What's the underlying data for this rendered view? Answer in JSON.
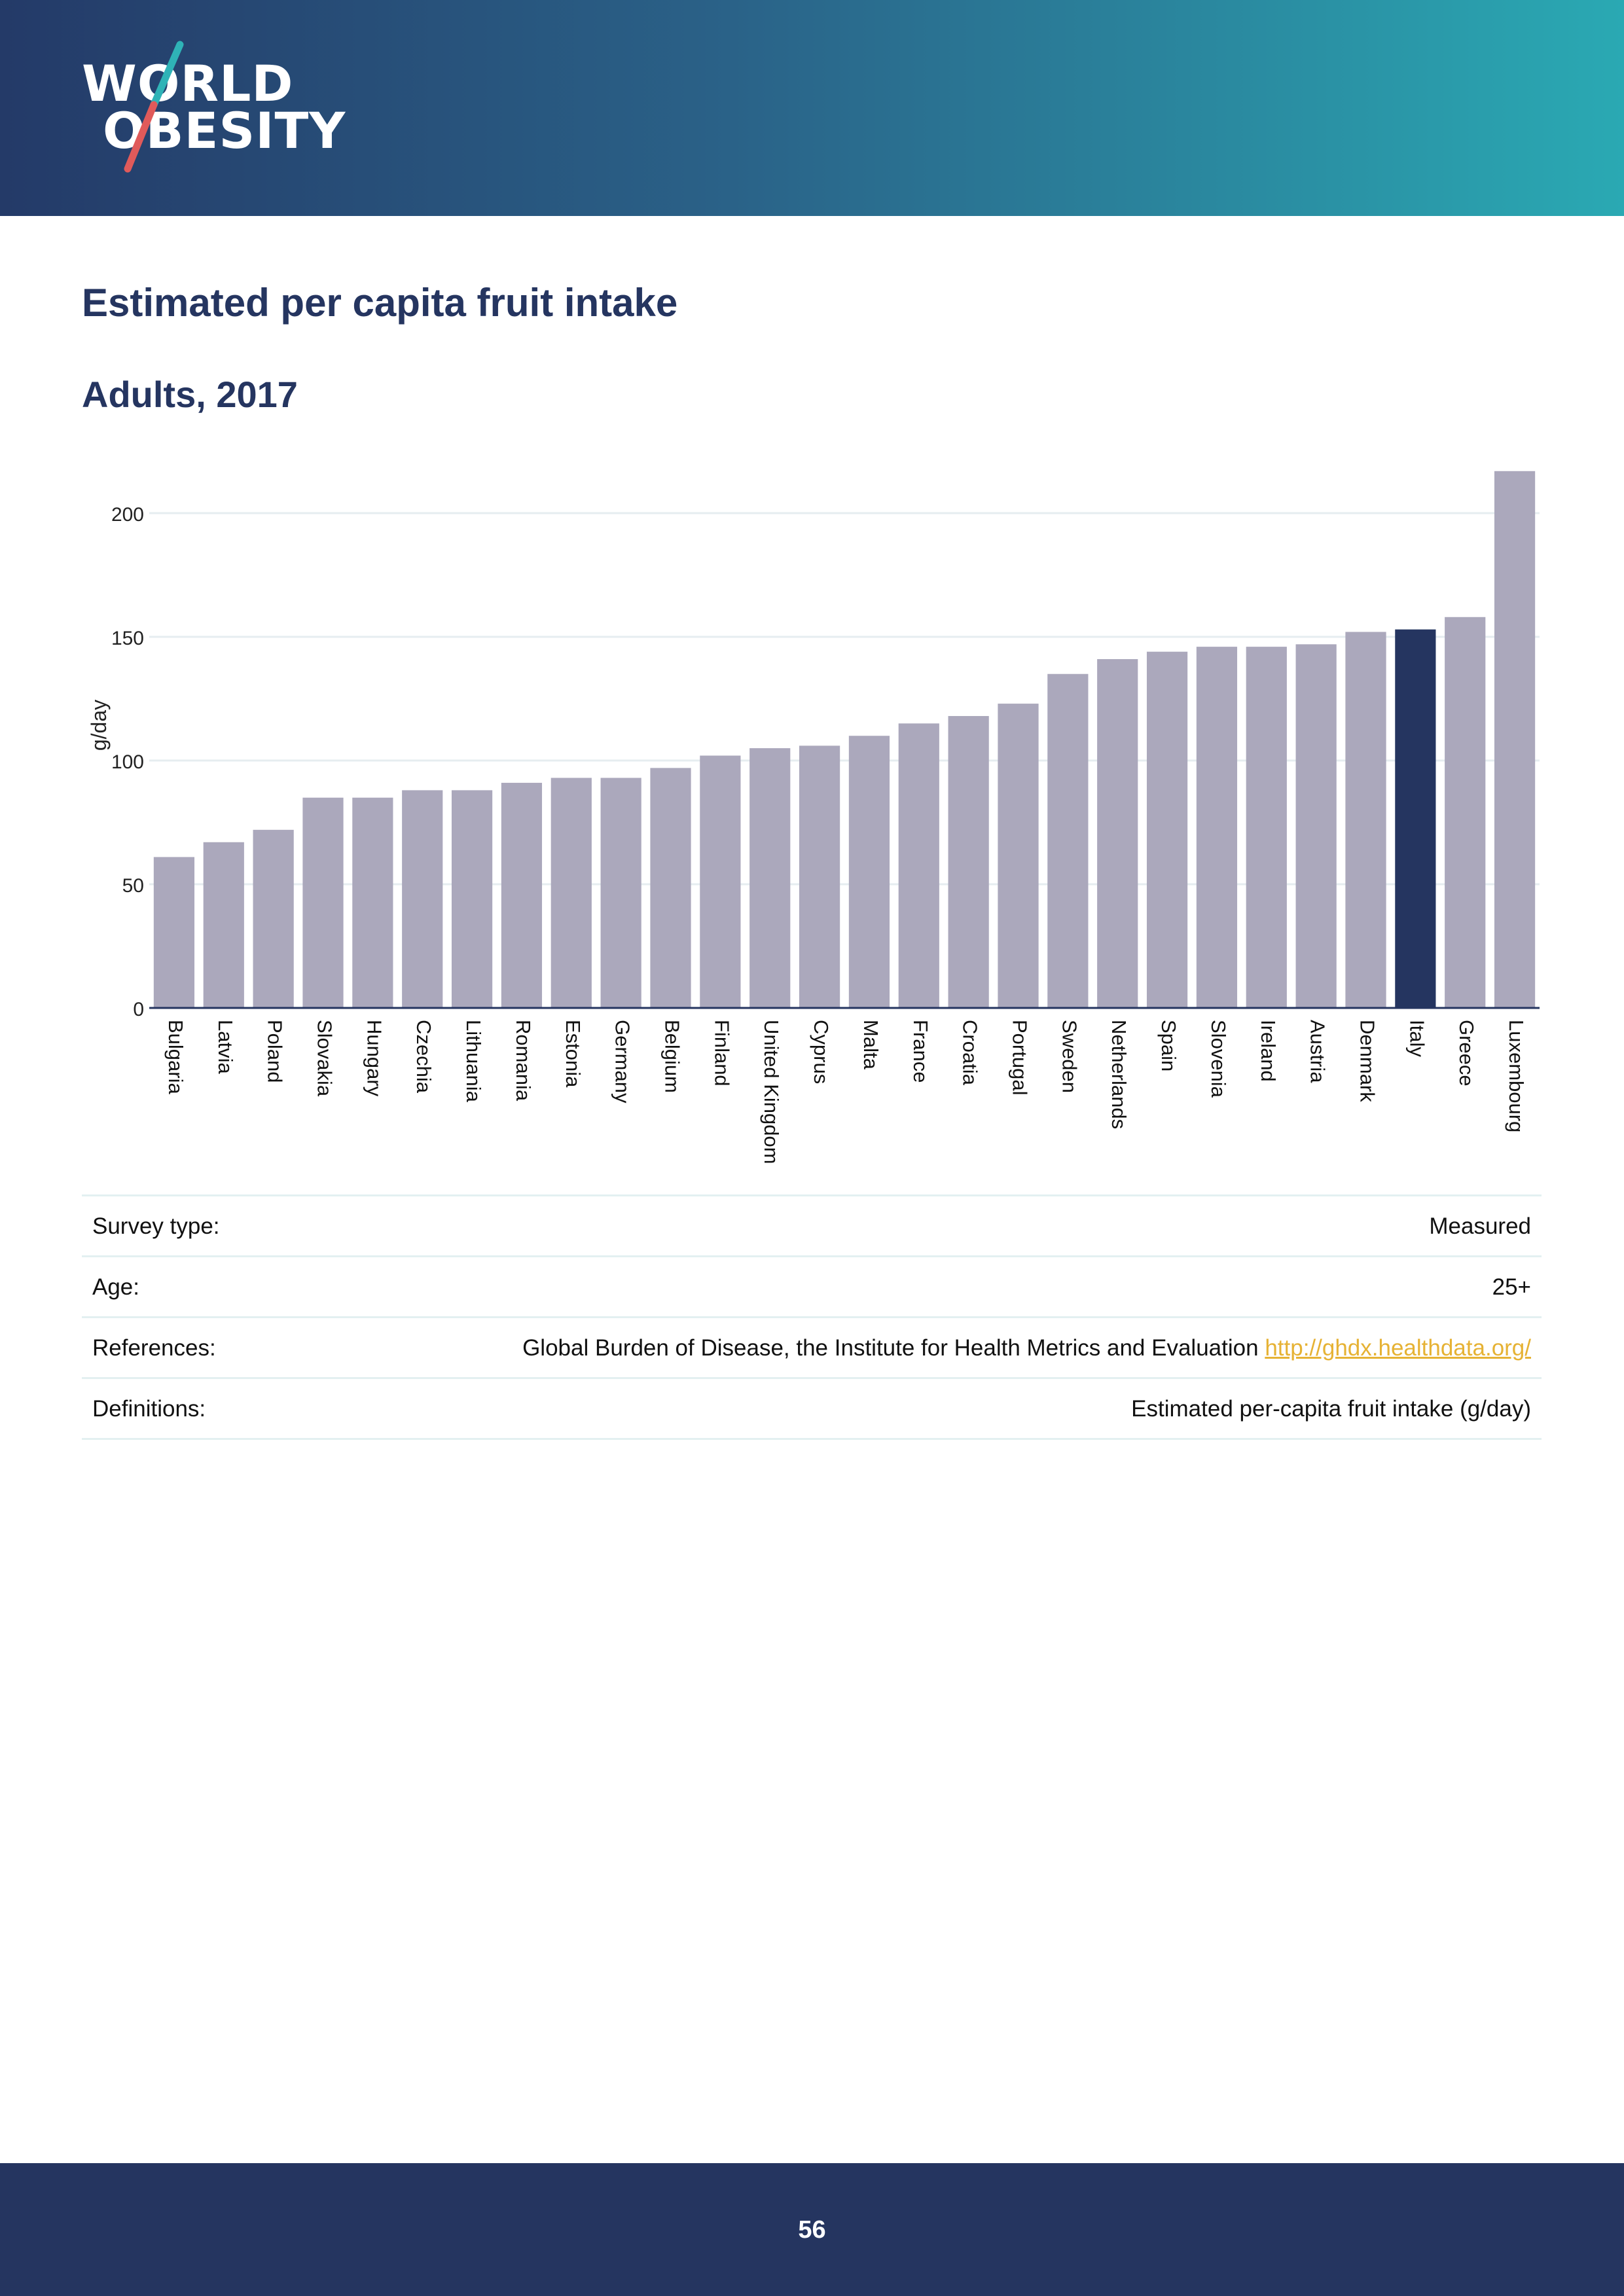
{
  "header": {
    "logo_line1": "WORLD",
    "logo_line2": "OBESITY"
  },
  "title": "Estimated per capita fruit intake",
  "subtitle": "Adults, 2017",
  "colors": {
    "header_dark": "#243a68",
    "header_light": "#2aa9b3",
    "title": "#253560",
    "bar": "#aba8bc",
    "bar_highlight": "#253560",
    "link": "#e6b234",
    "logo_teal": "#2fb3b7",
    "logo_coral": "#e05a5a"
  },
  "chart_data": {
    "type": "bar",
    "title": "Estimated per capita fruit intake",
    "subtitle": "Adults, 2017",
    "xlabel": "",
    "ylabel": "g/day",
    "ylim": [
      0,
      218
    ],
    "yticks": [
      0,
      50,
      100,
      150,
      200
    ],
    "grid": true,
    "highlight": "Italy",
    "categories": [
      "Bulgaria",
      "Latvia",
      "Poland",
      "Slovakia",
      "Hungary",
      "Czechia",
      "Lithuania",
      "Romania",
      "Estonia",
      "Germany",
      "Belgium",
      "Finland",
      "United Kingdom",
      "Cyprus",
      "Malta",
      "France",
      "Croatia",
      "Portugal",
      "Sweden",
      "Netherlands",
      "Spain",
      "Slovenia",
      "Ireland",
      "Austria",
      "Denmark",
      "Italy",
      "Greece",
      "Luxembourg"
    ],
    "values": [
      61,
      67,
      72,
      85,
      85,
      88,
      88,
      91,
      93,
      93,
      97,
      102,
      105,
      106,
      110,
      115,
      118,
      123,
      135,
      141,
      144,
      146,
      146,
      147,
      152,
      153,
      158,
      217
    ]
  },
  "info": {
    "survey_type_label": "Survey type:",
    "survey_type_value": "Measured",
    "age_label": "Age:",
    "age_value": "25+",
    "references_label": "References:",
    "references_value": "Global Burden of Disease, the Institute for Health Metrics and Evaluation",
    "references_link": "http://ghdx.healthdata.org/",
    "definitions_label": "Definitions:",
    "definitions_value": "Estimated per-capita fruit intake (g/day)"
  },
  "footer": {
    "page_number": "56"
  }
}
